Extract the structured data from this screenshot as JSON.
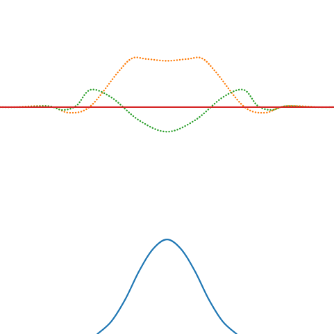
{
  "chart_data": {
    "type": "line",
    "title": "",
    "xlabel": "",
    "ylabel": "",
    "grid": false,
    "axes_visible": false,
    "legend": false,
    "xlim": [
      -6,
      6
    ],
    "ylim": [
      -0.72,
      0.34
    ],
    "series": [
      {
        "color": "#ff7f0e",
        "style": "dotted",
        "x": [
          -6,
          -5.5,
          -4.25,
          -3.5,
          -2.75,
          -1.75,
          -1.25,
          -0.75,
          0,
          0.75,
          1.25,
          1.75,
          2.75,
          3.5,
          4.25,
          5.5,
          6
        ],
        "y": [
          0,
          0,
          0.003,
          -0.018,
          0.003,
          0.112,
          0.155,
          0.153,
          0.147,
          0.153,
          0.155,
          0.112,
          0.003,
          -0.018,
          0.003,
          0,
          0
        ]
      },
      {
        "color": "#2ca02c",
        "style": "dotted",
        "x": [
          -6,
          -5.2,
          -4.25,
          -3.75,
          -3.25,
          -2.75,
          -2.0,
          -1.0,
          0,
          1.0,
          2.0,
          2.75,
          3.25,
          3.75,
          4.25,
          5.2,
          6
        ],
        "y": [
          0,
          0,
          0.003,
          -0.009,
          0.005,
          0.055,
          0.031,
          -0.042,
          -0.078,
          -0.042,
          0.031,
          0.055,
          0.005,
          -0.009,
          0.003,
          0,
          0
        ]
      },
      {
        "color": "#d62728",
        "style": "solid",
        "x": [
          -6,
          6
        ],
        "y": [
          0,
          0
        ]
      },
      {
        "color": "#1f77b4",
        "style": "solid",
        "x": [
          -2.5,
          -2.0,
          -1.5,
          -1.0,
          -0.5,
          0,
          0.5,
          1.0,
          1.5,
          2.0,
          2.5
        ],
        "y": [
          -0.72,
          -0.68,
          -0.61,
          -0.52,
          -0.45,
          -0.42,
          -0.45,
          -0.52,
          -0.61,
          -0.68,
          -0.72
        ]
      }
    ]
  }
}
